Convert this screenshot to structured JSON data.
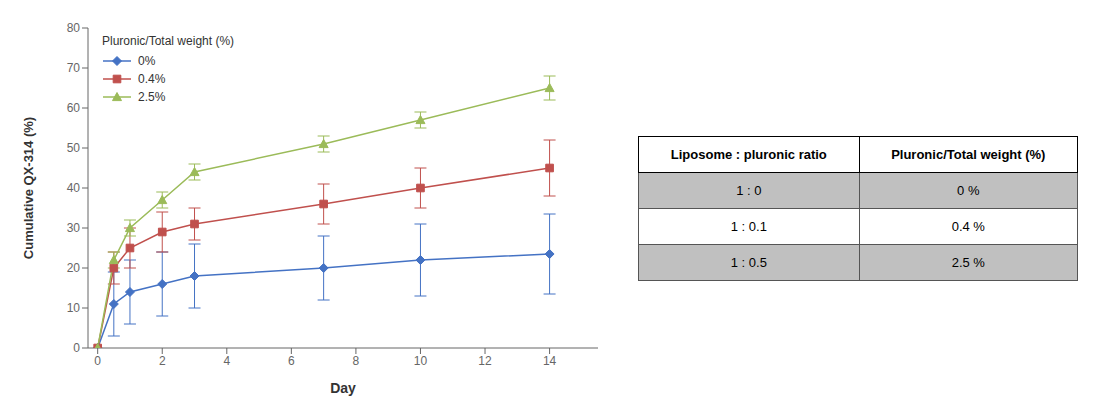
{
  "chart_data": {
    "type": "line",
    "xlabel": "Day",
    "ylabel": "Cumulative QX-314 (%)",
    "x": [
      0,
      0.5,
      1,
      2,
      3,
      7,
      10,
      14
    ],
    "series": [
      {
        "name": "0%",
        "color": "#4472C4",
        "marker": "diamond",
        "values": [
          0,
          11,
          14,
          16,
          18,
          20,
          22,
          23.5
        ],
        "errors": [
          0,
          8,
          8,
          8,
          8,
          8,
          9,
          10
        ]
      },
      {
        "name": "0.4%",
        "color": "#C0504D",
        "marker": "square",
        "values": [
          0,
          20,
          25,
          29,
          31,
          36,
          40,
          45
        ],
        "errors": [
          0,
          4,
          5,
          5,
          4,
          5,
          5,
          7
        ]
      },
      {
        "name": "2.5%",
        "color": "#9BBB59",
        "marker": "triangle",
        "values": [
          0,
          22,
          30,
          37,
          44,
          51,
          57,
          65
        ],
        "errors": [
          0,
          2,
          2,
          2,
          2,
          2,
          2,
          3
        ]
      }
    ],
    "xlim": [
      -0.3,
      15.5
    ],
    "xticks": [
      0,
      2,
      4,
      6,
      8,
      10,
      12,
      14
    ],
    "ylim": [
      0,
      80
    ],
    "yticks": [
      0,
      10,
      20,
      30,
      40,
      50,
      60,
      70,
      80
    ],
    "grid": false,
    "legend": "upper left",
    "legend_title": "Pluronic/Total weight (%)",
    "table": {
      "header": [
        "Liposome : pluronic ratio",
        "Pluronic/Total weight (%)"
      ],
      "rows": [
        [
          "1 : 0",
          "0 %"
        ],
        [
          "1 : 0.1",
          "0.4 %"
        ],
        [
          "1 : 0.5",
          "2.5 %"
        ]
      ],
      "row_colors": [
        "#C0C0C0",
        "#FFFFFF",
        "#C0C0C0"
      ]
    }
  }
}
